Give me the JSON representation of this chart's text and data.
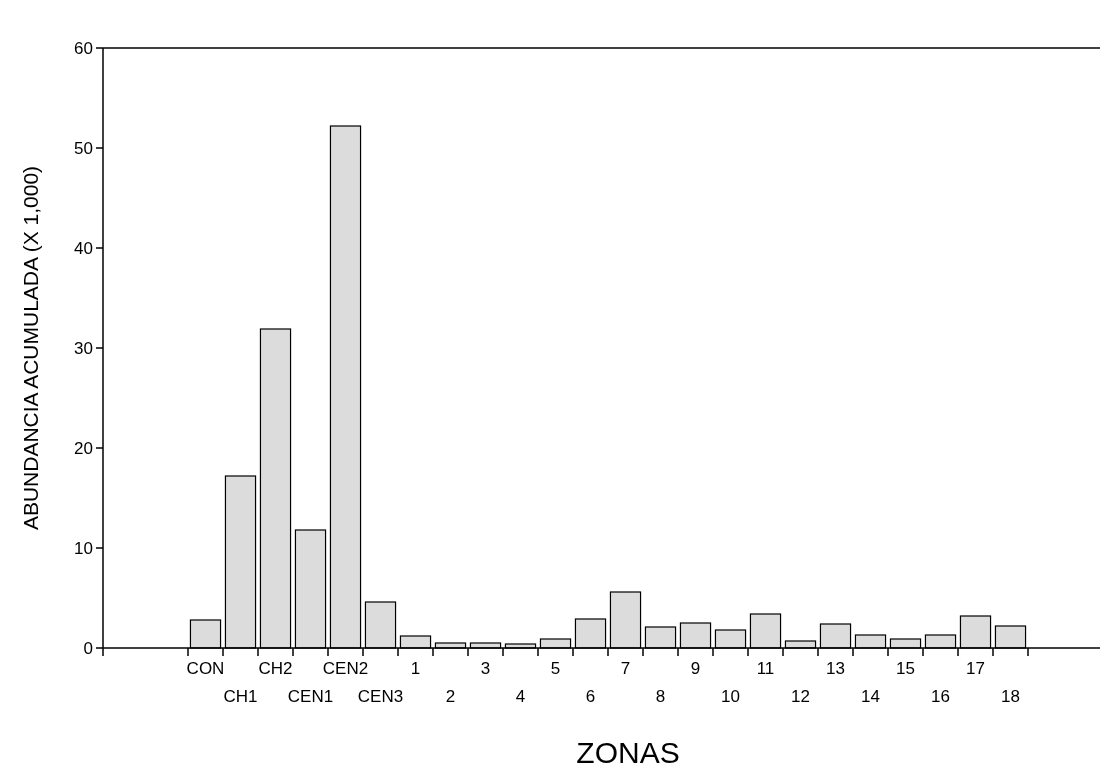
{
  "chart_data": {
    "type": "bar",
    "xlabel": "ZONAS",
    "ylabel": "ABUNDANCIA ACUMULADA (X 1,000)",
    "categories": [
      "CON",
      "CH1",
      "CH2",
      "CEN1",
      "CEN2",
      "CEN3",
      "1",
      "2",
      "3",
      "4",
      "5",
      "6",
      "7",
      "8",
      "9",
      "10",
      "11",
      "12",
      "13",
      "14",
      "15",
      "16",
      "17",
      "18"
    ],
    "values": [
      2.8,
      17.2,
      31.9,
      11.8,
      52.2,
      4.6,
      1.2,
      0.5,
      0.5,
      0.4,
      0.9,
      2.9,
      5.6,
      2.1,
      2.5,
      1.8,
      3.4,
      0.7,
      2.4,
      1.3,
      0.9,
      1.3,
      3.2,
      2.2
    ],
    "color": "#dcdcdc",
    "ylim": [
      0,
      60
    ],
    "yticks": [
      0,
      10,
      20,
      30,
      40,
      50,
      60
    ],
    "grid": false
  }
}
